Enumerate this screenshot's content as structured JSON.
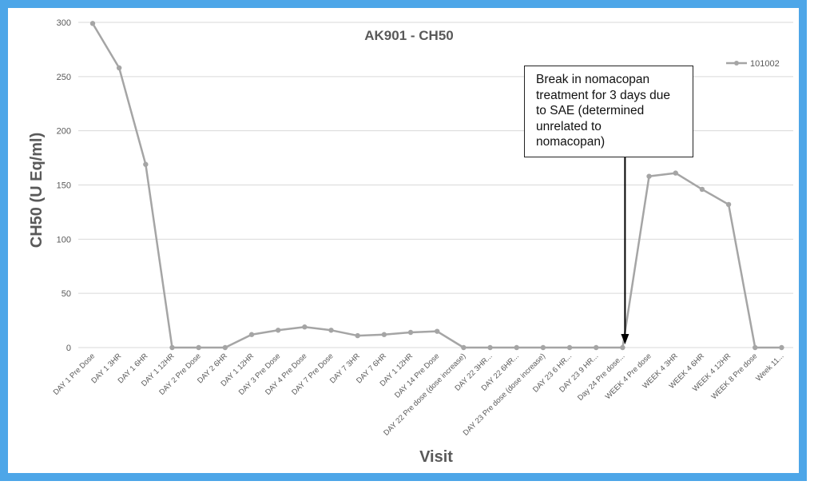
{
  "theme": {
    "frame_color": "#4da6e8",
    "line_color": "#a5a5a5",
    "grid_color": "#d9d9d9"
  },
  "chart_data": {
    "type": "line",
    "title": "AK901 - CH50",
    "xlabel": "Visit",
    "ylabel": "CH50 (U Eq/ml)",
    "ylim": [
      0,
      300
    ],
    "yticks": [
      0,
      50,
      100,
      150,
      200,
      250,
      300
    ],
    "grid": true,
    "legend_position": "top-right",
    "categories": [
      "DAY 1 Pre Dose",
      "DAY 1 3HR",
      "DAY 1 6HR",
      "DAY 1 12HR",
      "DAY 2 Pre Dose",
      "DAY 2 6HR",
      "DAY 1 12HR",
      "DAY 3 Pre Dose",
      "DAY 4 Pre Dose",
      "DAY 7 Pre Dose",
      "DAY 7 3HR",
      "DAY 7 6HR",
      "DAY 1 12HR",
      "DAY 14 Pre Dose",
      "DAY 22  Pre dose (dose increase)",
      "DAY 22 3HR...",
      "DAY 22 6HR...",
      "DAY 23 Pre dose  (dose increase)",
      "DAY 23 6 HR...",
      "DAY 23 9 HR...",
      "Day 24 Pre dose...",
      "WEEK 4 Pre dose",
      "WEEK 4 3HR",
      "WEEK 4 6HR",
      "WEEK 4 12HR",
      "WEEK 8 Pre dose",
      "Week 11..."
    ],
    "series": [
      {
        "name": "101002",
        "values": [
          299,
          258,
          169,
          0,
          0,
          0,
          12,
          16,
          19,
          16,
          11,
          12,
          14,
          15,
          0,
          0,
          0,
          0,
          0,
          0,
          0,
          158,
          161,
          146,
          132,
          0,
          0
        ]
      }
    ],
    "annotations": [
      {
        "text": "Break in nomacopan treatment for 3 days due to SAE (determined unrelated to nomacopan)",
        "lines": [
          "Break in nomacopan",
          "treatment for 3 days due",
          "to SAE (determined",
          "unrelated to",
          "nomacopan)"
        ],
        "points_to_category": "Day 24 Pre dose..."
      }
    ]
  }
}
